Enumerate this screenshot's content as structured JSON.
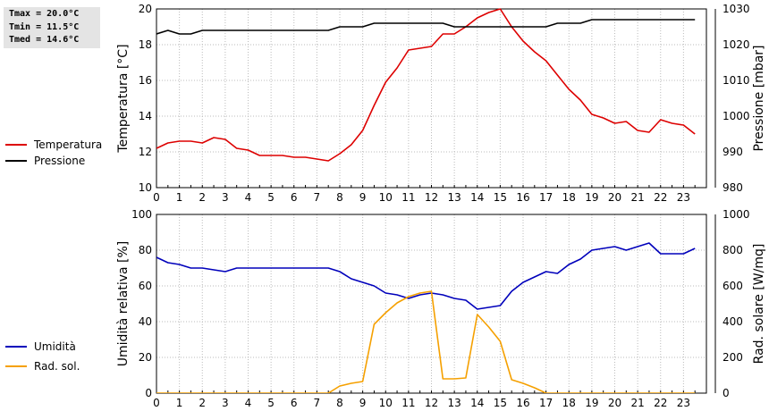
{
  "stats": {
    "tmax": "Tmax = 20.0°C",
    "tmin": "Tmin = 11.5°C",
    "tmed": "Tmed = 14.6°C"
  },
  "colors": {
    "temperature": "#dd0000",
    "pressure": "#000000",
    "humidity": "#0000bb",
    "radiation": "#f5a000",
    "grid": "#bbbbbb"
  },
  "chart_data": [
    {
      "type": "line",
      "x": [
        0,
        0.5,
        1,
        1.5,
        2,
        2.5,
        3,
        3.5,
        4,
        4.5,
        5,
        5.5,
        6,
        6.5,
        7,
        7.5,
        8,
        8.5,
        9,
        9.5,
        10,
        10.5,
        11,
        11.5,
        12,
        12.5,
        13,
        13.5,
        14,
        14.5,
        15,
        15.5,
        16,
        16.5,
        17,
        17.5,
        18,
        18.5,
        19,
        19.5,
        20,
        20.5,
        21,
        21.5,
        22,
        22.5,
        23,
        23.5
      ],
      "xlim": [
        0,
        24
      ],
      "xticks": [
        "0",
        "1",
        "2",
        "3",
        "4",
        "5",
        "6",
        "7",
        "8",
        "9",
        "10",
        "11",
        "12",
        "13",
        "14",
        "15",
        "16",
        "17",
        "18",
        "19",
        "20",
        "21",
        "22",
        "23"
      ],
      "ylabel": "Temperatura [°C]",
      "ylim": [
        10,
        20
      ],
      "yticks": [
        "10",
        "12",
        "14",
        "16",
        "18",
        "20"
      ],
      "y2label": "Pressione [mbar]",
      "y2lim": [
        980,
        1030
      ],
      "y2ticks": [
        "980",
        "990",
        "1000",
        "1010",
        "1020",
        "1030"
      ],
      "grid": true,
      "legend": "left",
      "series": [
        {
          "name": "Temperatura",
          "axis": "left",
          "values": [
            12.2,
            12.5,
            12.6,
            12.6,
            12.5,
            12.8,
            12.7,
            12.2,
            12.1,
            11.8,
            11.8,
            11.8,
            11.7,
            11.7,
            11.6,
            11.5,
            11.9,
            12.4,
            13.2,
            14.6,
            15.9,
            16.7,
            17.7,
            17.8,
            17.9,
            18.6,
            18.6,
            19.0,
            19.5,
            19.8,
            20.0,
            19.0,
            18.2,
            17.6,
            17.1,
            16.3,
            15.5,
            14.9,
            14.1,
            13.9,
            13.6,
            13.7,
            13.2,
            13.1,
            13.8,
            13.6,
            13.5,
            13.0
          ]
        },
        {
          "name": "Pressione",
          "axis": "right",
          "values": [
            1023,
            1024,
            1023,
            1023,
            1024,
            1024,
            1024,
            1024,
            1024,
            1024,
            1024,
            1024,
            1024,
            1024,
            1024,
            1024,
            1025,
            1025,
            1025,
            1026,
            1026,
            1026,
            1026,
            1026,
            1026,
            1026,
            1025,
            1025,
            1025,
            1025,
            1025,
            1025,
            1025,
            1025,
            1025,
            1026,
            1026,
            1026,
            1027,
            1027,
            1027,
            1027,
            1027,
            1027,
            1027,
            1027,
            1027,
            1027
          ]
        }
      ]
    },
    {
      "type": "line",
      "x": [
        0,
        0.5,
        1,
        1.5,
        2,
        2.5,
        3,
        3.5,
        4,
        4.5,
        5,
        5.5,
        6,
        6.5,
        7,
        7.5,
        8,
        8.5,
        9,
        9.5,
        10,
        10.5,
        11,
        11.5,
        12,
        12.5,
        13,
        13.5,
        14,
        14.5,
        15,
        15.5,
        16,
        16.5,
        17,
        17.5,
        18,
        18.5,
        19,
        19.5,
        20,
        20.5,
        21,
        21.5,
        22,
        22.5,
        23,
        23.5
      ],
      "xlim": [
        0,
        24
      ],
      "xticks": [
        "0",
        "1",
        "2",
        "3",
        "4",
        "5",
        "6",
        "7",
        "8",
        "9",
        "10",
        "11",
        "12",
        "13",
        "14",
        "15",
        "16",
        "17",
        "18",
        "19",
        "20",
        "21",
        "22",
        "23"
      ],
      "ylabel": "Umidità relativa [%]",
      "ylim": [
        0,
        100
      ],
      "yticks": [
        "0",
        "20",
        "40",
        "60",
        "80",
        "100"
      ],
      "y2label": "Rad. solare [W/mq]",
      "y2lim": [
        0,
        1000
      ],
      "y2ticks": [
        "0",
        "200",
        "400",
        "600",
        "800",
        "1000"
      ],
      "grid": true,
      "legend": "left",
      "series": [
        {
          "name": "Umidità",
          "axis": "left",
          "values": [
            76,
            73,
            72,
            70,
            70,
            69,
            68,
            70,
            70,
            70,
            70,
            70,
            70,
            70,
            70,
            70,
            68,
            64,
            62,
            60,
            56,
            55,
            53,
            55,
            56,
            55,
            53,
            52,
            47,
            48,
            49,
            57,
            62,
            65,
            68,
            67,
            72,
            75,
            80,
            81,
            82,
            80,
            82,
            84,
            78,
            78,
            78,
            81
          ]
        },
        {
          "name": "Rad. sol.",
          "axis": "right",
          "values": [
            0,
            0,
            0,
            0,
            0,
            0,
            0,
            0,
            0,
            0,
            0,
            0,
            0,
            0,
            0,
            0,
            40,
            55,
            65,
            385,
            450,
            505,
            540,
            560,
            570,
            80,
            80,
            85,
            440,
            370,
            290,
            75,
            55,
            30,
            0,
            0,
            0,
            0,
            0,
            0,
            0,
            0,
            0,
            0,
            0,
            0,
            0,
            0
          ]
        }
      ]
    }
  ]
}
